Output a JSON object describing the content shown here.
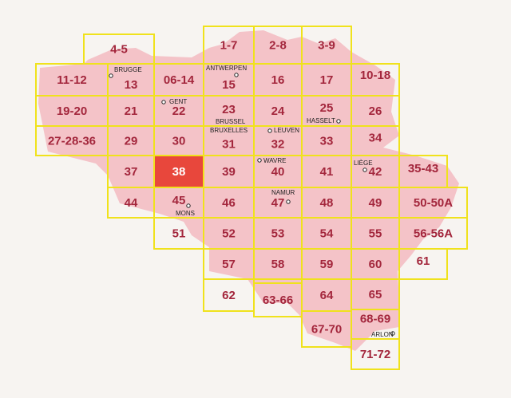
{
  "tiles": [
    "1-7",
    "2-8",
    "3-9",
    "4-5",
    "11-12",
    "13",
    "06-14",
    "15",
    "16",
    "17",
    "10-18",
    "19-20",
    "21",
    "22",
    "23",
    "24",
    "25",
    "26",
    "27-28-36",
    "29",
    "30",
    "31",
    "32",
    "33",
    "34",
    "37",
    "38",
    "39",
    "40",
    "41",
    "42",
    "35-43",
    "44",
    "45",
    "46",
    "47",
    "48",
    "49",
    "50-50A",
    "51",
    "52",
    "53",
    "54",
    "55",
    "56-56A",
    "57",
    "58",
    "59",
    "60",
    "61",
    "62",
    "63-66",
    "64",
    "65",
    "67-70",
    "68-69",
    "71-72"
  ],
  "cities": [
    "BRUGGE",
    "ANTWERPEN",
    "GENT",
    "BRUSSEL",
    "HASSELT",
    "BRUXELLES",
    "LEUVEN",
    "WAVRE",
    "LIÈGE",
    "NAMUR",
    "MONS",
    "ARLON"
  ]
}
